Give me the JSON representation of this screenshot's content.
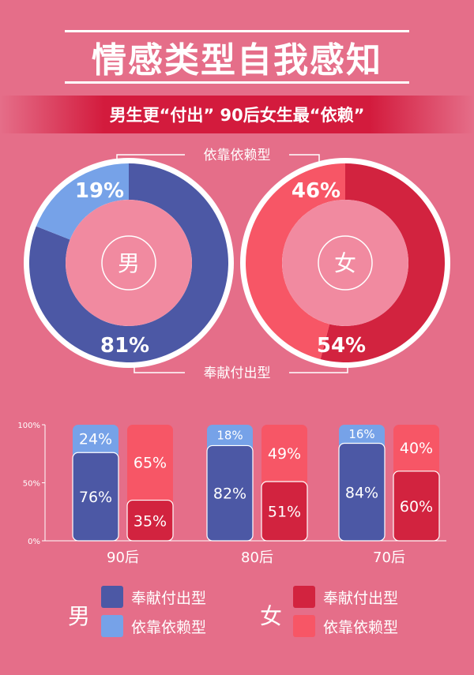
{
  "header": {
    "title": "情感类型自我感知",
    "subtitle": "男生更“付出” 90后女生最“依赖”"
  },
  "colors": {
    "background": "#e56e89",
    "male_devoted": "#4c58a5",
    "male_dependent": "#76a2e8",
    "female_devoted": "#d2233f",
    "female_dependent": "#f75666"
  },
  "chart_data": [
    {
      "type": "pie",
      "style": "donut",
      "center_label": "男",
      "slices": [
        {
          "label": "奉献付出型",
          "value": 81,
          "text": "81%"
        },
        {
          "label": "依靠依赖型",
          "value": 19,
          "text": "19%"
        }
      ]
    },
    {
      "type": "pie",
      "style": "donut",
      "center_label": "女",
      "slices": [
        {
          "label": "奉献付出型",
          "value": 54,
          "text": "54%"
        },
        {
          "label": "依靠依赖型",
          "value": 46,
          "text": "46%"
        }
      ]
    },
    {
      "type": "bar",
      "stacked": true,
      "categories": [
        "90后",
        "80后",
        "70后"
      ],
      "ylim": [
        0,
        100
      ],
      "yticks": [
        "0%",
        "50%",
        "100%"
      ],
      "series": [
        {
          "group": "男",
          "name": "奉献付出型",
          "values": [
            76,
            82,
            84
          ]
        },
        {
          "group": "男",
          "name": "依靠依赖型",
          "values": [
            24,
            18,
            16
          ]
        },
        {
          "group": "女",
          "name": "奉献付出型",
          "values": [
            35,
            51,
            60
          ]
        },
        {
          "group": "女",
          "name": "依靠依赖型",
          "values": [
            65,
            49,
            40
          ]
        }
      ]
    }
  ],
  "callouts": {
    "top": "依靠依赖型",
    "bottom": "奉献付出型"
  },
  "legend": {
    "male_label": "男",
    "female_label": "女",
    "devoted": "奉献付出型",
    "dependent": "依靠依赖型"
  }
}
